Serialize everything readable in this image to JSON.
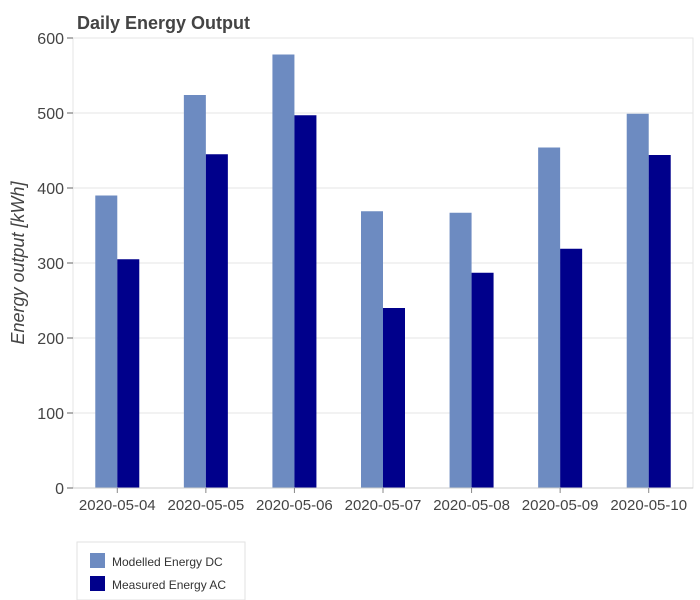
{
  "chart_data": {
    "type": "bar",
    "title": "Daily Energy Output",
    "xlabel": "",
    "ylabel": "Energy output [kWh]",
    "ylim": [
      0,
      600
    ],
    "yticks": [
      0,
      100,
      200,
      300,
      400,
      500,
      600
    ],
    "grid": true,
    "legend_position": "bottom-left",
    "categories": [
      "2020-05-04",
      "2020-05-05",
      "2020-05-06",
      "2020-05-07",
      "2020-05-08",
      "2020-05-09",
      "2020-05-10"
    ],
    "series": [
      {
        "name": "Modelled Energy DC",
        "color": "#6d8bc1",
        "values": [
          390,
          524,
          578,
          369,
          367,
          454,
          499
        ]
      },
      {
        "name": "Measured Energy AC",
        "color": "#00008b",
        "values": [
          305,
          445,
          497,
          240,
          287,
          319,
          444
        ]
      }
    ]
  }
}
